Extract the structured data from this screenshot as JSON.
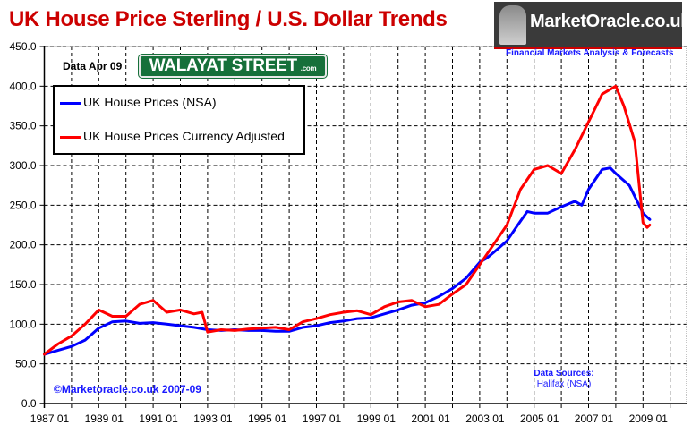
{
  "header": {
    "title": "UK House Price Sterling / U.S. Dollar Trends",
    "data_date": "Data Apr 09",
    "street_sign": "WALAYAT STREET",
    "street_sign_suffix": ".com"
  },
  "branding": {
    "logo_text": "MarketOracle.co.uk",
    "tagline": "Financial Markets Analysis & Forecasts",
    "copyright": "©Marketoracle.co.uk 2007-09"
  },
  "sources": {
    "label": "Data Sources:",
    "value": "Halifax (NSA)"
  },
  "colors": {
    "nsa": "#0000ff",
    "adjusted": "#ff0000",
    "title": "#cc0000",
    "annotation": "#1a1aff"
  },
  "chart_data": {
    "type": "line",
    "title": "UK House Price Sterling / U.S. Dollar Trends",
    "xlabel": "",
    "ylabel": "",
    "xlim": [
      1987.0,
      2010.6
    ],
    "ylim": [
      0,
      450
    ],
    "grid": true,
    "legend_position": "top-left",
    "yticks": [
      "0.0",
      "50.0",
      "100.0",
      "150.0",
      "200.0",
      "250.0",
      "300.0",
      "350.0",
      "400.0",
      "450.0"
    ],
    "xticks": [
      "1987 01",
      "1989 01",
      "1991 01",
      "1993 01",
      "1995 01",
      "1997 01",
      "1999 01",
      "2001 01",
      "2003 01",
      "2005 01",
      "2007 01",
      "2009 01"
    ],
    "series": [
      {
        "name": "UK House Prices (NSA)",
        "color": "#0000ff",
        "x": [
          1987.0,
          1987.5,
          1988.0,
          1988.5,
          1989.0,
          1989.5,
          1990.0,
          1990.5,
          1991.0,
          1991.5,
          1992.0,
          1992.5,
          1993.0,
          1993.5,
          1994.0,
          1994.5,
          1995.0,
          1995.5,
          1996.0,
          1996.5,
          1997.0,
          1997.5,
          1998.0,
          1998.5,
          1999.0,
          1999.5,
          2000.0,
          2000.5,
          2001.0,
          2001.5,
          2002.0,
          2002.5,
          2003.0,
          2003.25,
          2003.5,
          2004.0,
          2004.5,
          2004.75,
          2005.0,
          2005.5,
          2006.0,
          2006.5,
          2006.75,
          2007.0,
          2007.5,
          2007.8,
          2008.0,
          2008.5,
          2009.0,
          2009.25
        ],
        "values": [
          62,
          67,
          72,
          80,
          95,
          103,
          104,
          101,
          102,
          100,
          98,
          96,
          93,
          92,
          93,
          92,
          92,
          91,
          91,
          96,
          98,
          102,
          104,
          107,
          108,
          113,
          118,
          124,
          127,
          135,
          145,
          158,
          178,
          183,
          190,
          205,
          230,
          242,
          240,
          240,
          248,
          255,
          250,
          270,
          295,
          297,
          290,
          275,
          240,
          232
        ]
      },
      {
        "name": "UK House Prices Currency Adjusted",
        "color": "#ff0000",
        "x": [
          1987.0,
          1987.5,
          1988.0,
          1988.5,
          1989.0,
          1989.5,
          1990.0,
          1990.5,
          1991.0,
          1991.5,
          1992.0,
          1992.5,
          1992.8,
          1993.0,
          1993.5,
          1994.0,
          1994.5,
          1995.0,
          1995.5,
          1996.0,
          1996.5,
          1997.0,
          1997.5,
          1998.0,
          1998.5,
          1999.0,
          1999.5,
          2000.0,
          2000.5,
          2001.0,
          2001.5,
          2002.0,
          2002.5,
          2003.0,
          2003.5,
          2004.0,
          2004.5,
          2005.0,
          2005.5,
          2006.0,
          2006.5,
          2007.0,
          2007.5,
          2008.0,
          2008.3,
          2008.7,
          2009.0,
          2009.15,
          2009.25
        ],
        "values": [
          62,
          75,
          85,
          100,
          118,
          110,
          110,
          125,
          130,
          115,
          118,
          113,
          115,
          90,
          93,
          92,
          94,
          95,
          96,
          93,
          103,
          107,
          112,
          115,
          117,
          112,
          122,
          128,
          130,
          122,
          125,
          138,
          150,
          175,
          200,
          225,
          270,
          295,
          300,
          290,
          320,
          355,
          390,
          400,
          375,
          330,
          228,
          222,
          225
        ]
      }
    ]
  }
}
